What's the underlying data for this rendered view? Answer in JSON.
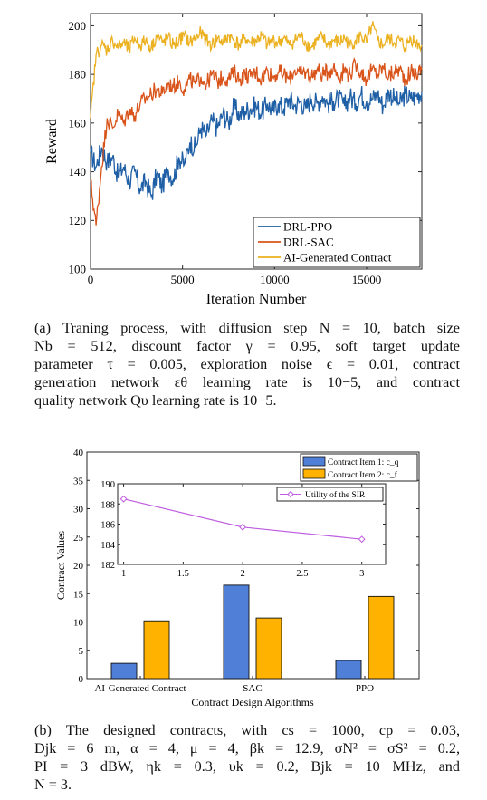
{
  "chart_data": [
    {
      "type": "line",
      "xlabel": "Iteration Number",
      "ylabel": "Reward",
      "xlim": [
        0,
        18000
      ],
      "ylim": [
        100,
        205
      ],
      "xticks": [
        0,
        5000,
        10000,
        15000
      ],
      "yticks": [
        100,
        120,
        140,
        160,
        180,
        200
      ],
      "grid": false,
      "legend_position": "bottom-right",
      "series": [
        {
          "name": "DRL-PPO",
          "color": "#1f5fa6",
          "x": [
            0,
            300,
            600,
            900,
            1200,
            1500,
            1800,
            2100,
            2400,
            2700,
            3000,
            3300,
            3600,
            3900,
            4200,
            4500,
            4800,
            5100,
            5400,
            5700,
            6000,
            6300,
            6600,
            6900,
            7200,
            7500,
            7800,
            8100,
            8400,
            8700,
            9000,
            9300,
            9600,
            9900,
            10200,
            10500,
            10800,
            11100,
            11400,
            11700,
            12000,
            12300,
            12600,
            12900,
            13200,
            13500,
            13800,
            14100,
            14400,
            14700,
            15000,
            15300,
            15600,
            15900,
            16200,
            16500,
            16800,
            17100,
            17400,
            17700,
            18000
          ],
          "values": [
            148,
            142,
            150,
            144,
            146,
            138,
            142,
            136,
            140,
            133,
            136,
            130,
            139,
            134,
            141,
            137,
            146,
            143,
            152,
            150,
            158,
            155,
            161,
            158,
            164,
            160,
            167,
            163,
            165,
            166,
            167,
            164,
            168,
            165,
            168,
            166,
            170,
            167,
            169,
            166,
            170,
            168,
            171,
            168,
            169,
            170,
            167,
            171,
            168,
            172,
            169,
            170,
            172,
            167,
            173,
            170,
            168,
            172,
            170,
            171,
            173
          ]
        },
        {
          "name": "DRL-SAC",
          "color": "#d9541a",
          "x": [
            0,
            300,
            600,
            900,
            1200,
            1500,
            1800,
            2100,
            2400,
            2700,
            3000,
            3300,
            3600,
            3900,
            4200,
            4500,
            4800,
            5100,
            5400,
            5700,
            6000,
            6300,
            6600,
            6900,
            7200,
            7500,
            7800,
            8100,
            8400,
            8700,
            9000,
            9300,
            9600,
            9900,
            10200,
            10500,
            10800,
            11100,
            11400,
            11700,
            12000,
            12300,
            12600,
            12900,
            13200,
            13500,
            13800,
            14100,
            14400,
            14700,
            15000,
            15300,
            15600,
            15900,
            16200,
            16500,
            16800,
            17100,
            17400,
            17700,
            18000
          ],
          "values": [
            136,
            118,
            142,
            162,
            158,
            164,
            160,
            166,
            163,
            168,
            170,
            172,
            174,
            172,
            176,
            175,
            177,
            174,
            178,
            176,
            179,
            176,
            180,
            177,
            179,
            178,
            181,
            178,
            180,
            179,
            181,
            178,
            182,
            179,
            181,
            180,
            178,
            182,
            180,
            181,
            179,
            182,
            180,
            181,
            183,
            179,
            182,
            180,
            184,
            181,
            178,
            182,
            180,
            183,
            179,
            181,
            182,
            178,
            181,
            180,
            182
          ]
        },
        {
          "name": "AI-Generated Contract",
          "color": "#ebb120",
          "x": [
            0,
            300,
            600,
            900,
            1200,
            1500,
            1800,
            2100,
            2400,
            2700,
            3000,
            3300,
            3600,
            3900,
            4200,
            4500,
            4800,
            5100,
            5400,
            5700,
            6000,
            6300,
            6600,
            6900,
            7200,
            7500,
            7800,
            8100,
            8400,
            8700,
            9000,
            9300,
            9600,
            9900,
            10200,
            10500,
            10800,
            11100,
            11400,
            11700,
            12000,
            12300,
            12600,
            12900,
            13200,
            13500,
            13800,
            14100,
            14400,
            14700,
            15000,
            15300,
            15600,
            15900,
            16200,
            16500,
            16800,
            17100,
            17400,
            17700,
            18000
          ],
          "values": [
            162,
            188,
            192,
            190,
            194,
            191,
            193,
            190,
            195,
            192,
            194,
            191,
            196,
            193,
            195,
            192,
            194,
            196,
            193,
            195,
            197,
            194,
            192,
            195,
            193,
            196,
            194,
            192,
            195,
            193,
            194,
            196,
            192,
            194,
            193,
            195,
            192,
            194,
            196,
            193,
            191,
            194,
            195,
            192,
            194,
            193,
            195,
            192,
            194,
            196,
            193,
            200,
            194,
            192,
            195,
            193,
            194,
            191,
            195,
            193,
            192
          ]
        }
      ]
    },
    {
      "type": "bar",
      "xlabel": "Contract Design Algorithms",
      "ylabel": "Contract Values",
      "categories": [
        "AI-Generated Contract",
        "SAC",
        "PPO"
      ],
      "ylim": [
        0,
        40
      ],
      "yticks": [
        0,
        5,
        10,
        15,
        20,
        25,
        30,
        35,
        40
      ],
      "grid": false,
      "legend_position": "top-right",
      "series": [
        {
          "name": "Contract Item 1: c_q",
          "color": "#4f7fd6",
          "values": [
            2.7,
            16.5,
            3.2
          ]
        },
        {
          "name": "Contract Item 2: c_f",
          "color": "#ffb300",
          "values": [
            10.2,
            10.7,
            14.5
          ]
        }
      ],
      "inset": {
        "type": "line",
        "x": [
          1,
          2,
          3
        ],
        "values": [
          188.5,
          185.7,
          184.5
        ],
        "series_name": "Utility of the SIR",
        "color": "#bf5ce0",
        "xlim": [
          0.95,
          3.2
        ],
        "ylim": [
          182,
          190
        ],
        "xticks": [
          "1",
          "1.5",
          "2",
          "2.5",
          "3"
        ],
        "xtick_values": [
          1,
          1.5,
          2,
          2.5,
          3
        ],
        "yticks": [
          182,
          184,
          186,
          188,
          190
        ],
        "legend_position": "top-right"
      }
    }
  ],
  "captions": {
    "a": [
      "(a) Traning process, with diffusion step N = 10, batch size",
      "Nb = 512, discount factor γ = 0.95, soft target update",
      "parameter τ = 0.005, exploration noise ϵ = 0.01, contract",
      "generation network εθ learning rate is 10−5, and contract",
      "quality network Qυ learning rate is 10−5."
    ],
    "b": [
      "(b) The designed contracts, with cs = 1000, cp = 0.03,",
      "Djk = 6 m, α = 4, μ = 4, βk = 12.9, σN² = σS² = 0.2,",
      "PI = 3 dBW, ηk = 0.3, υk = 0.2, Bjk = 10 MHz, and",
      "N = 3."
    ]
  }
}
